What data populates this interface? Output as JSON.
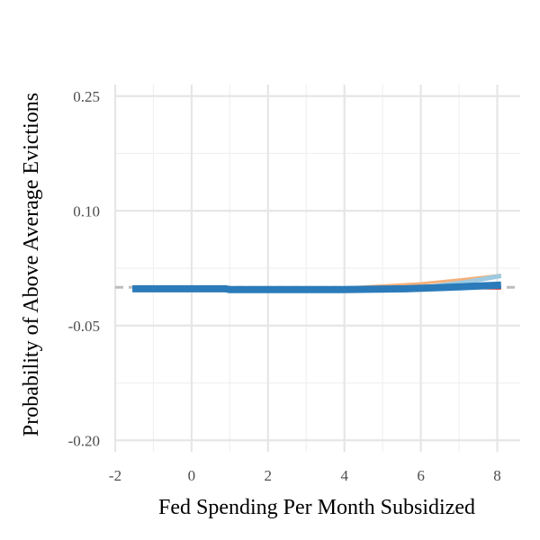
{
  "chart_data": {
    "type": "line",
    "title": "",
    "xlabel": "Fed Spending Per Month Subsidized",
    "ylabel": "Probability of Above Average Evictions",
    "xlim": [
      -2,
      8.6
    ],
    "ylim": [
      -0.215,
      0.265
    ],
    "x_ticks": [
      -2,
      0,
      2,
      4,
      6,
      8
    ],
    "x_tick_labels": [
      "-2",
      "0",
      "2",
      "4",
      "6",
      "8"
    ],
    "y_ticks": [
      0.25,
      0.1,
      -0.05,
      -0.2
    ],
    "y_tick_labels": [
      "0.25",
      "0.10",
      "-0.05",
      "-0.20"
    ],
    "reference_line": {
      "y": 0.0,
      "style": "dashed",
      "color": "#bdbdbd"
    },
    "grid": true,
    "series": [
      {
        "color": "#d62728",
        "width": 1.6,
        "points": [
          [
            -1.55,
            -0.001
          ],
          [
            3.8,
            -0.001
          ],
          [
            5.5,
            -0.001
          ],
          [
            8.1,
            -0.002
          ]
        ]
      },
      {
        "color": "#f4b07a",
        "width": 3,
        "points": [
          [
            -1.55,
            -0.002
          ],
          [
            3.6,
            -0.002
          ],
          [
            4.6,
            0.001
          ],
          [
            6.0,
            0.005
          ],
          [
            7.2,
            0.011
          ],
          [
            8.1,
            0.016
          ]
        ]
      },
      {
        "color": "#9ecae1",
        "width": 5,
        "points": [
          [
            -1.55,
            -0.003
          ],
          [
            3.7,
            -0.003
          ],
          [
            5.0,
            -0.004
          ],
          [
            6.0,
            -0.001
          ],
          [
            7.2,
            0.007
          ],
          [
            8.1,
            0.015
          ]
        ]
      },
      {
        "color": "#2b7bba",
        "width": 8,
        "points": [
          [
            -1.55,
            -0.002
          ],
          [
            0.9,
            -0.002
          ],
          [
            1.0,
            -0.003
          ],
          [
            3.8,
            -0.003
          ],
          [
            5.6,
            -0.002
          ],
          [
            6.7,
            0.0
          ],
          [
            7.6,
            0.002
          ],
          [
            8.1,
            0.003
          ]
        ]
      }
    ]
  }
}
